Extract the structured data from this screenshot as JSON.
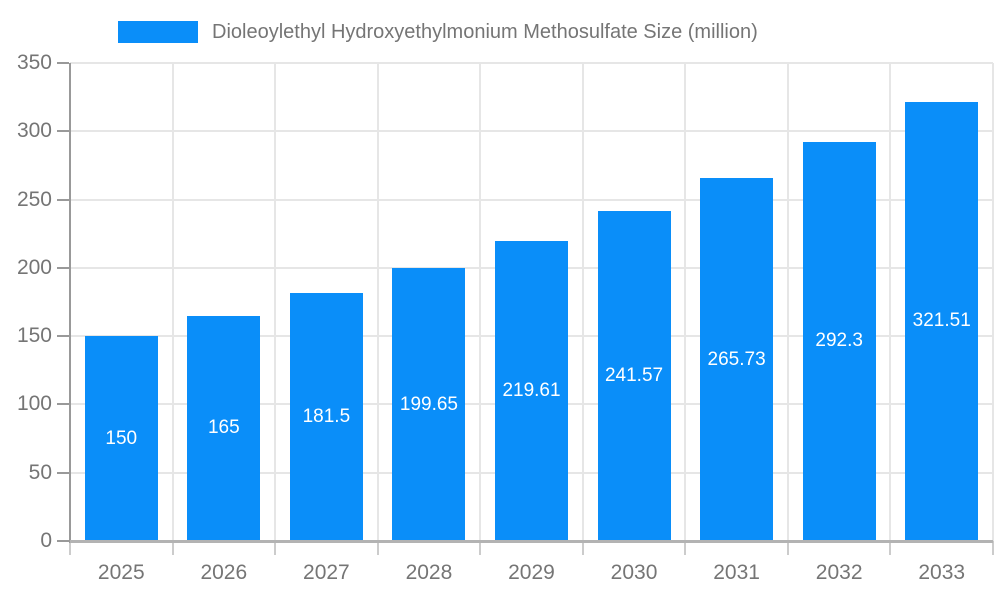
{
  "chart_data": {
    "type": "bar",
    "title": "Dioleoylethyl Hydroxyethylmonium Methosulfate Size (million)",
    "categories": [
      "2025",
      "2026",
      "2027",
      "2028",
      "2029",
      "2030",
      "2031",
      "2032",
      "2033"
    ],
    "values": [
      150,
      165,
      181.5,
      199.65,
      219.61,
      241.57,
      265.73,
      292.3,
      321.51
    ],
    "value_labels": [
      "150",
      "165",
      "181.5",
      "199.65",
      "219.61",
      "241.57",
      "265.73",
      "292.3",
      "321.51"
    ],
    "xlabel": "",
    "ylabel": "",
    "ylim": [
      0,
      350
    ],
    "ytick_step": 50,
    "ytick_labels": [
      "0",
      "50",
      "100",
      "150",
      "200",
      "250",
      "300",
      "350"
    ],
    "grid": "both",
    "legend_position": "top",
    "value_labels_position": "inside-center",
    "colors": {
      "bar": "#0a8ef9",
      "axis_line": "#999999",
      "baseline": "#b3b3b3",
      "gridline": "#e6e6e6",
      "tick": "#cccccc",
      "ytick_mark": "#999999",
      "label_text": "#757575",
      "value_label_text": "#ffffff",
      "background": "#ffffff"
    }
  }
}
